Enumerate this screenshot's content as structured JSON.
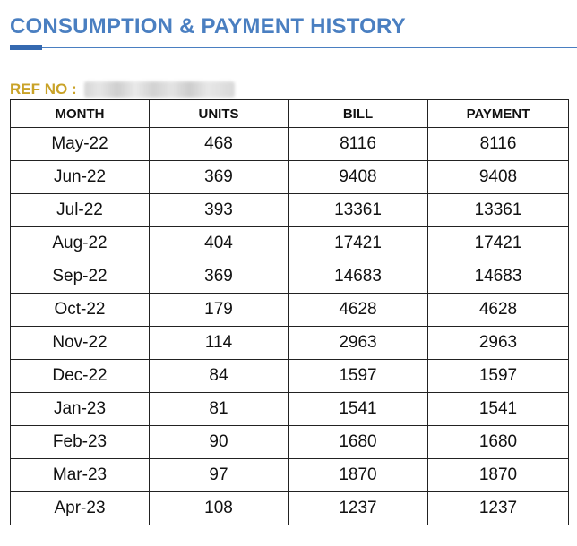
{
  "header": {
    "title": "CONSUMPTION & PAYMENT HISTORY"
  },
  "ref": {
    "label": "REF NO :",
    "value_redacted": true
  },
  "table": {
    "columns": [
      "MONTH",
      "UNITS",
      "BILL",
      "PAYMENT"
    ],
    "rows": [
      [
        "May-22",
        "468",
        "8116",
        "8116"
      ],
      [
        "Jun-22",
        "369",
        "9408",
        "9408"
      ],
      [
        "Jul-22",
        "393",
        "13361",
        "13361"
      ],
      [
        "Aug-22",
        "404",
        "17421",
        "17421"
      ],
      [
        "Sep-22",
        "369",
        "14683",
        "14683"
      ],
      [
        "Oct-22",
        "179",
        "4628",
        "4628"
      ],
      [
        "Nov-22",
        "114",
        "2963",
        "2963"
      ],
      [
        "Dec-22",
        "84",
        "1597",
        "1597"
      ],
      [
        "Jan-23",
        "81",
        "1541",
        "1541"
      ],
      [
        "Feb-23",
        "90",
        "1680",
        "1680"
      ],
      [
        "Mar-23",
        "97",
        "1870",
        "1870"
      ],
      [
        "Apr-23",
        "108",
        "1237",
        "1237"
      ]
    ]
  },
  "colors": {
    "title": "#4a7fc1",
    "ref_label": "#c9a227",
    "table_border": "#222222"
  }
}
